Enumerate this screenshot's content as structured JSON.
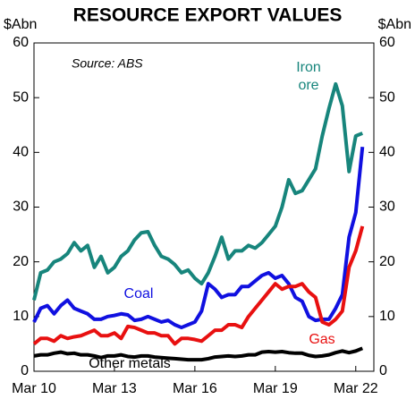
{
  "chart_data": {
    "type": "line",
    "title": "RESOURCE EXPORT VALUES",
    "ylabel": "$Abn",
    "y2label": "$Abn",
    "source": "Source: ABS",
    "categories": [
      "Mar 10",
      null,
      null,
      null,
      null,
      null,
      null,
      null,
      null,
      null,
      null,
      null,
      "Mar 13",
      null,
      null,
      null,
      null,
      null,
      null,
      null,
      null,
      null,
      null,
      null,
      "Mar 16",
      null,
      null,
      null,
      null,
      null,
      null,
      null,
      null,
      null,
      null,
      null,
      "Mar 19",
      null,
      null,
      null,
      null,
      null,
      null,
      null,
      null,
      null,
      null,
      null,
      "Mar 22",
      null
    ],
    "ylim": [
      0,
      60
    ],
    "yticks": [
      0,
      10,
      20,
      30,
      40,
      50,
      60
    ],
    "y2lim": [
      0,
      60
    ],
    "y2ticks": [
      0,
      10,
      20,
      30,
      40,
      50,
      60
    ],
    "grid": false,
    "series": [
      {
        "name": "Iron ore",
        "color": "#17857c",
        "values": [
          13,
          18,
          18.5,
          20,
          20.5,
          21.5,
          23.5,
          22,
          23,
          19,
          21,
          18,
          19,
          21,
          22,
          24,
          25.3,
          25.5,
          23,
          21,
          20.5,
          19.5,
          18,
          18.5,
          17,
          16,
          18,
          21,
          24.5,
          20.5,
          22,
          22,
          23,
          22.5,
          23.5,
          25,
          26.5,
          30,
          35,
          32.5,
          33,
          35,
          37,
          43,
          48,
          52.5,
          48.5,
          36.5,
          43,
          43.5
        ]
      },
      {
        "name": "Coal",
        "color": "#1010e0",
        "values": [
          9,
          11.5,
          12,
          10.5,
          12,
          13,
          11.5,
          11,
          10.5,
          9.5,
          9.5,
          10,
          10.2,
          10.5,
          10.3,
          9.3,
          9.5,
          10,
          9.5,
          9,
          9.3,
          8.5,
          8,
          8.5,
          9,
          11,
          16,
          15,
          13.5,
          14,
          14,
          15.5,
          15.5,
          16.5,
          17.5,
          18,
          17,
          17.5,
          16,
          13.5,
          12.8,
          10,
          9.3,
          9.5,
          9.5,
          11.5,
          14,
          24.5,
          29,
          41
        ]
      },
      {
        "name": "Gas",
        "color": "#e81010",
        "values": [
          5,
          6,
          6,
          5.5,
          6.5,
          6,
          6.3,
          6.5,
          7,
          7.5,
          6.5,
          6.5,
          7,
          6,
          8.2,
          8,
          7.5,
          7,
          7,
          6.5,
          6.5,
          5,
          6,
          6,
          5.8,
          5.5,
          6.5,
          7.5,
          7.5,
          8.5,
          8.5,
          8,
          10,
          11.5,
          13,
          14.5,
          16,
          15,
          15.5,
          15.5,
          16,
          14.5,
          13.5,
          9,
          8.5,
          9.5,
          11,
          19,
          22,
          26.5
        ]
      },
      {
        "name": "Other metals",
        "color": "#000000",
        "values": [
          2.8,
          3,
          3,
          3.3,
          3.5,
          3.2,
          3.3,
          3,
          3,
          2.8,
          2.5,
          2.8,
          2.8,
          3,
          2.7,
          2.6,
          2.8,
          2.8,
          2.6,
          2.5,
          2.4,
          2.3,
          2.2,
          2.1,
          2.1,
          2.1,
          2.3,
          2.6,
          2.7,
          2.8,
          2.7,
          2.8,
          3,
          3,
          3.5,
          3.6,
          3.5,
          3.6,
          3.4,
          3.3,
          3.3,
          2.9,
          2.7,
          2.8,
          3,
          3.4,
          3.7,
          3.4,
          3.7,
          4.2
        ]
      }
    ]
  }
}
